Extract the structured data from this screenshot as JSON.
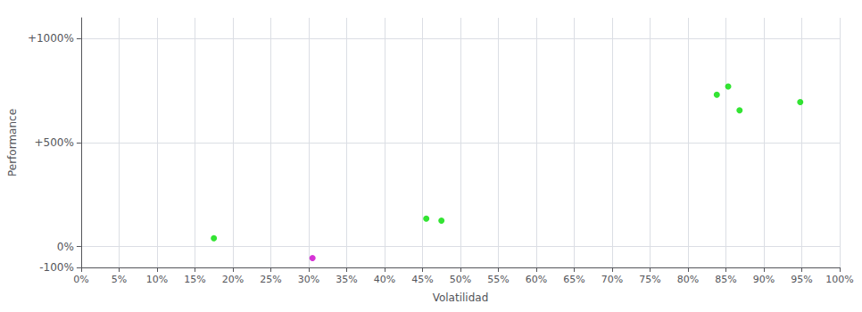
{
  "chart_data": {
    "type": "scatter",
    "xlabel": "Volatilidad",
    "ylabel": "Performance",
    "x": [
      0.175,
      0.305,
      0.455,
      0.475,
      0.838,
      0.853,
      0.868,
      0.948
    ],
    "values": [
      0.04,
      -0.055,
      0.135,
      0.125,
      0.73,
      0.77,
      0.655,
      0.695
    ],
    "colors": [
      "#00dd00",
      "#cc00cc",
      "#00dd00",
      "#00dd00",
      "#00dd00",
      "#00dd00",
      "#00dd00",
      "#00dd00"
    ],
    "xlim": [
      0.0,
      1.0
    ],
    "ylim": [
      -0.1,
      1.1
    ],
    "xticks": [
      {
        "value": 0.0,
        "label": "0%"
      },
      {
        "value": 0.05,
        "label": "5%"
      },
      {
        "value": 0.1,
        "label": "10%"
      },
      {
        "value": 0.15,
        "label": "15%"
      },
      {
        "value": 0.2,
        "label": "20%"
      },
      {
        "value": 0.25,
        "label": "25%"
      },
      {
        "value": 0.3,
        "label": "30%"
      },
      {
        "value": 0.35,
        "label": "35%"
      },
      {
        "value": 0.4,
        "label": "40%"
      },
      {
        "value": 0.45,
        "label": "45%"
      },
      {
        "value": 0.5,
        "label": "50%"
      },
      {
        "value": 0.55,
        "label": "55%"
      },
      {
        "value": 0.6,
        "label": "60%"
      },
      {
        "value": 0.65,
        "label": "65%"
      },
      {
        "value": 0.7,
        "label": "70%"
      },
      {
        "value": 0.75,
        "label": "75%"
      },
      {
        "value": 0.8,
        "label": "80%"
      },
      {
        "value": 0.85,
        "label": "85%"
      },
      {
        "value": 0.9,
        "label": "90%"
      },
      {
        "value": 0.95,
        "label": "95%"
      },
      {
        "value": 1.0,
        "label": "100%"
      }
    ],
    "yticks": [
      {
        "value": -0.1,
        "label": "-100%"
      },
      {
        "value": 0.0,
        "label": "0%"
      },
      {
        "value": 0.5,
        "label": "+500%"
      },
      {
        "value": 1.0,
        "label": "+1000%"
      }
    ],
    "grid": true
  }
}
